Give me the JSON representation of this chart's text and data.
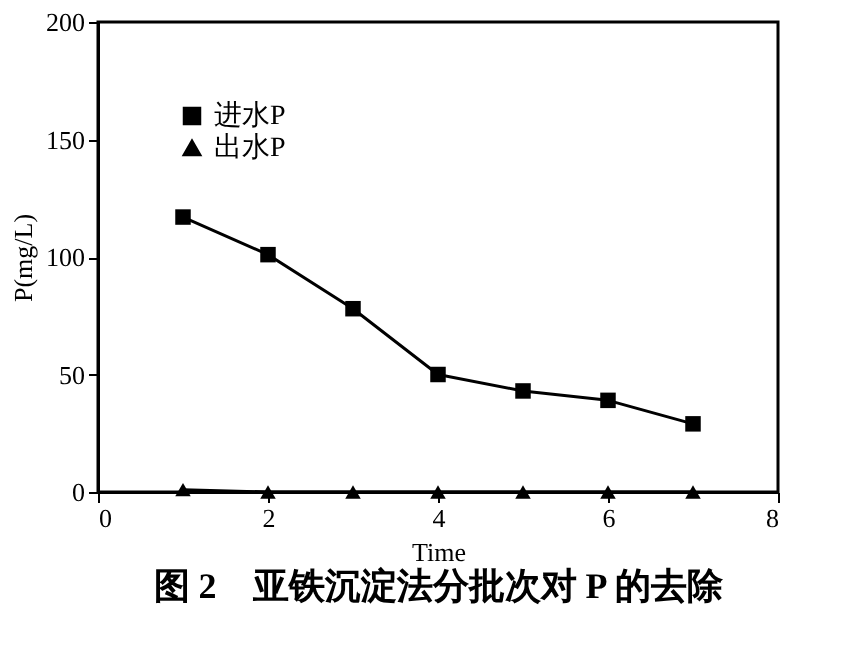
{
  "chart_data": {
    "type": "line",
    "xlabel": "Time",
    "ylabel": "P(mg/L)",
    "x": [
      1,
      2,
      3,
      4,
      5,
      6,
      7
    ],
    "series": [
      {
        "name": "进水P",
        "color": "#000000",
        "marker": "square",
        "values": [
          117,
          101,
          78,
          50,
          43,
          39,
          29
        ]
      },
      {
        "name": "出水P",
        "color": "#000000",
        "marker": "triangle",
        "values": [
          1,
          0,
          0,
          0,
          0,
          0,
          0
        ]
      }
    ],
    "xlim": [
      0,
      8
    ],
    "xticks": [
      0,
      2,
      4,
      6,
      8
    ],
    "ylim": [
      0,
      200
    ],
    "yticks": [
      0,
      50,
      100,
      150,
      200
    ],
    "grid": false,
    "legend": "top left",
    "line_style": "solid",
    "annotations": [
      "图 2　亚铁沉淀法分批次对 P 的去除"
    ]
  }
}
